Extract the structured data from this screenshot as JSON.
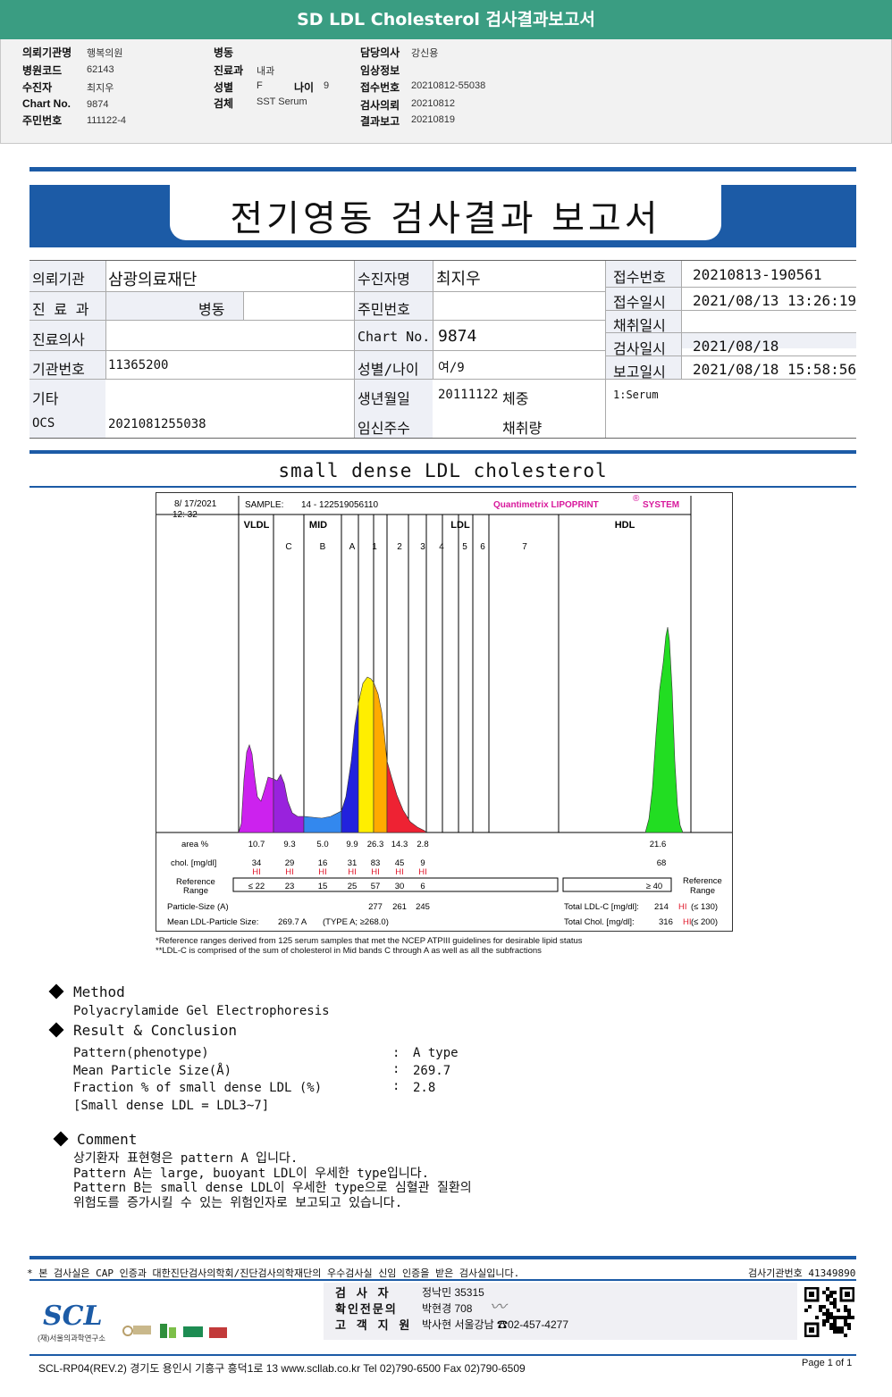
{
  "top": {
    "title": "SD LDL Cholesterol 검사결과보고서",
    "rows": [
      {
        "l1": "의뢰기관명",
        "v1": "행복의원",
        "l2": "병동",
        "v2": "",
        "l3": "담당의사",
        "v3": "강신용"
      },
      {
        "l1": "병원코드",
        "v1": "62143",
        "l2": "진료과",
        "v2": "내과",
        "l3": "임상정보",
        "v3": ""
      },
      {
        "l1": "수진자",
        "v1": "최지우",
        "l2": "성별",
        "v2": "F",
        "l2b": "나이",
        "v2b": "9",
        "l3": "접수번호",
        "v3": "20210812-55038"
      },
      {
        "l1": "Chart No.",
        "v1": "9874",
        "l2": "검체",
        "v2": "SST Serum",
        "l3": "검사의뢰",
        "v3": "20210812"
      },
      {
        "l1": "주민번호",
        "v1": "111122-4",
        "l2": "",
        "v2": "",
        "l3": "결과보고",
        "v3": "20210819"
      }
    ]
  },
  "report": {
    "title": "전기영동 검사결과 보고서",
    "labels": {
      "institution": "의뢰기관",
      "dept": "진 료 과",
      "doctor": "진료의사",
      "inst_no": "기관번호",
      "etc": "기타",
      "ocs": "OCS",
      "patient": "수진자명",
      "id_no": "주민번호",
      "chart_no": "Chart No.",
      "sex_age": "성별/나이",
      "birth": "생년월일",
      "weight": "체중",
      "preg": "임신주수",
      "volume": "채취량",
      "reg_no": "접수번호",
      "reg_time": "접수일시",
      "collect_time": "채취일시",
      "test_date": "검사일시",
      "report_time": "보고일시"
    },
    "values": {
      "institution": "삼광의료재단",
      "dept": "병동",
      "inst_no": "11365200",
      "ocs": "2021081255038",
      "patient": "최지우",
      "chart_no": "9874",
      "sex_age": "여/9",
      "birth": "20111122",
      "reg_no": "20210813-190561",
      "reg_time": "2021/08/13 13:26:19",
      "test_date": "2021/08/18",
      "report_time": "2021/08/18 15:58:56",
      "specimen": "1:Serum"
    }
  },
  "section_title": "small dense LDL cholesterol",
  "chart_data": {
    "type": "area",
    "date": "8/ 17/2021",
    "time": "12: 32",
    "sample_label": "SAMPLE:",
    "sample_id": "14 - 122519056110",
    "brand": "Quantimetrix LIPOPRINT",
    "brand_sup": "®",
    "brand2": "SYSTEM",
    "groups": [
      "VLDL",
      "MID",
      "LDL",
      "HDL"
    ],
    "bands": [
      "C",
      "B",
      "A",
      "1",
      "2",
      "3",
      "4",
      "5",
      "6",
      "7"
    ],
    "row_labels": {
      "area": "area %",
      "chol": "chol. [mg/dl]",
      "ref1": "Reference",
      "ref2": "Range",
      "particle": "Particle-Size (A)",
      "mean": "Mean LDL-Particle Size:"
    },
    "columns": [
      {
        "area": "10.7",
        "chol": "34",
        "flag": "HI",
        "ref": "≤ 22"
      },
      {
        "area": "9.3",
        "chol": "29",
        "flag": "HI",
        "ref": "23"
      },
      {
        "area": "5.0",
        "chol": "16",
        "flag": "HI",
        "ref": "15"
      },
      {
        "area": "9.9",
        "chol": "31",
        "flag": "HI",
        "ref": "25"
      },
      {
        "area": "26.3",
        "chol": "83",
        "flag": "HI",
        "ref": "57"
      },
      {
        "area": "14.3",
        "chol": "45",
        "flag": "HI",
        "ref": "30"
      },
      {
        "area": "2.8",
        "chol": "9",
        "flag": "HI",
        "ref": "6"
      }
    ],
    "hdl": {
      "area": "21.6",
      "chol": "68",
      "ref": "≥ 40"
    },
    "particle_sizes": [
      "277",
      "261",
      "245"
    ],
    "mean_size": "269.7 A",
    "mean_type": "(TYPE A; ≥268.0)",
    "total_ldl_label": "Total LDL-C [mg/dl]:",
    "total_ldl": "214",
    "total_ldl_flag": "HI",
    "total_ldl_ref": "(≤ 130)",
    "total_chol_label": "Total Chol. [mg/dl]:",
    "total_chol": "316",
    "total_chol_flag": "HI",
    "total_chol_ref": "(≤ 200)",
    "hdl_ref1": "Reference",
    "hdl_ref2": "Range",
    "colors": {
      "vldl": "#cc22ee",
      "midc": "#9922dd",
      "midb": "#3388ee",
      "mida": "#2222dd",
      "ldl1": "#ffee00",
      "ldl2": "#ffaa00",
      "ldl3": "#ee2233",
      "hdl": "#22dd22"
    }
  },
  "footnotes": [
    "*Reference ranges derived from 125 serum samples that met the NCEP ATPIII guidelines for desirable lipid status",
    "**LDL-C is comprised of the sum of cholesterol in Mid bands C through A as well as all the subfractions"
  ],
  "method": {
    "title": "Method",
    "text": "Polyacrylamide Gel Electrophoresis"
  },
  "result": {
    "title": "Result & Conclusion",
    "rows": [
      {
        "k": "Pattern(phenotype)",
        "v": "A type"
      },
      {
        "k": "Mean Particle Size(Å)",
        "v": "269.7"
      },
      {
        "k": "Fraction % of small dense LDL (%)",
        "v": "2.8"
      }
    ],
    "note": "[Small dense LDL = LDL3~7]",
    "sep": ":"
  },
  "comment": {
    "title": "Comment",
    "lines": [
      "상기환자 표현형은 pattern A 입니다.",
      "Pattern A는 large, buoyant LDL이 우세한 type입니다.",
      "Pattern B는 small dense LDL이 우세한 type으로 심혈관 질환의",
      "위험도를 증가시킬 수 있는 위험인자로 보고되고 있습니다."
    ]
  },
  "footer": {
    "cert": "* 본 검사실은 CAP 인증과 대한진단검사의학회/진단검사의학재단의 우수검사실 신임 인증을 받은 검사실입니다.",
    "inst_no": "검사기관번호 41349890",
    "staff": [
      {
        "role": "검 사 자",
        "name": "정낙민 35315"
      },
      {
        "role": "확인전문의",
        "name": "박현경 708"
      },
      {
        "role": "고 객 지 원",
        "name": "박사현 서울강남 ☎02-457-4277"
      }
    ],
    "logo": "SCL",
    "logo_sub": "(재)서울의과학연구소",
    "bottom": "SCL-RP04(REV.2)  경기도 용인시 기흥구 흥덕1로 13  www.scllab.co.kr  Tel 02)790-6500  Fax 02)790-6509",
    "page": "Page 1 of 1"
  }
}
